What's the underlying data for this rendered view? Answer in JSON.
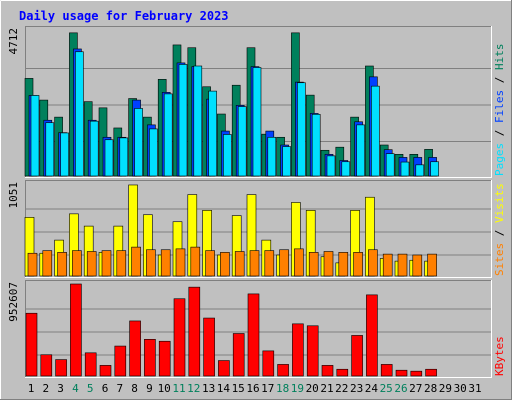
{
  "colors": {
    "background": "#c0c0c0",
    "plot_bg": "#c0c0c0",
    "title": "#0000ff",
    "hits": "#00805c",
    "files": "#0040ff",
    "pages": "#00e0ff",
    "visits": "#ffff00",
    "sites": "#ff8000",
    "kbytes": "#ff0000",
    "weekend_label": "#00805c",
    "weekday_label": "#000000"
  },
  "chart_data": [
    {
      "type": "bar",
      "title": "Daily usage for February 2023",
      "ymax_label": "4712",
      "legend": [
        {
          "text": "Pages",
          "color": "#00e0ff"
        },
        {
          "text": " / ",
          "color": "#000000"
        },
        {
          "text": "Files",
          "color": "#0040ff"
        },
        {
          "text": " / ",
          "color": "#000000"
        },
        {
          "text": "Hits",
          "color": "#00805c"
        }
      ],
      "ylim": [
        0,
        4712
      ],
      "categories": [
        "1",
        "2",
        "3",
        "4",
        "5",
        "6",
        "7",
        "8",
        "9",
        "10",
        "11",
        "12",
        "13",
        "14",
        "15",
        "16",
        "17",
        "18",
        "19",
        "20",
        "21",
        "22",
        "23",
        "24",
        "25",
        "26",
        "27",
        "28",
        "29",
        "30",
        "31"
      ],
      "weekend_days": [
        "4",
        "5",
        "11",
        "12",
        "18",
        "19",
        "25",
        "26"
      ],
      "series": [
        {
          "name": "Hits",
          "values": [
            3150,
            2450,
            1900,
            4620,
            2400,
            2200,
            1550,
            2500,
            1900,
            3120,
            4230,
            4140,
            2880,
            2000,
            2930,
            4140,
            1350,
            1250,
            4620,
            2610,
            830,
            930,
            1900,
            3550,
            1000,
            700,
            700,
            860,
            0,
            0,
            0
          ]
        },
        {
          "name": "Files",
          "values": [
            2600,
            1800,
            1400,
            4100,
            1800,
            1250,
            1250,
            2450,
            1650,
            2700,
            3650,
            3530,
            2480,
            1450,
            2280,
            3530,
            1450,
            1000,
            3030,
            2020,
            700,
            500,
            1750,
            3200,
            850,
            600,
            600,
            600,
            0,
            0,
            0
          ]
        },
        {
          "name": "Pages",
          "values": [
            2600,
            1720,
            1390,
            4010,
            1770,
            1170,
            1230,
            2180,
            1520,
            2650,
            3600,
            3550,
            2740,
            1340,
            2240,
            3500,
            1250,
            950,
            3010,
            1990,
            650,
            460,
            1650,
            2900,
            720,
            450,
            360,
            460,
            0,
            0,
            0
          ]
        }
      ]
    },
    {
      "type": "bar",
      "ymax_label": "1051",
      "legend": [
        {
          "text": "Sites",
          "color": "#ff8000"
        },
        {
          "text": " / ",
          "color": "#000000"
        },
        {
          "text": "Visits",
          "color": "#ffff00"
        }
      ],
      "ylim": [
        0,
        1051
      ],
      "categories": [
        "1",
        "2",
        "3",
        "4",
        "5",
        "6",
        "7",
        "8",
        "9",
        "10",
        "11",
        "12",
        "13",
        "14",
        "15",
        "16",
        "17",
        "18",
        "19",
        "20",
        "21",
        "22",
        "23",
        "24",
        "25",
        "26",
        "27",
        "28",
        "29",
        "30",
        "31"
      ],
      "series": [
        {
          "name": "Visits",
          "values": [
            670,
            260,
            410,
            710,
            570,
            270,
            570,
            1040,
            700,
            240,
            620,
            930,
            750,
            240,
            690,
            930,
            410,
            240,
            840,
            750,
            220,
            150,
            750,
            900,
            200,
            170,
            180,
            170,
            0,
            0,
            0
          ]
        },
        {
          "name": "Sites",
          "values": [
            260,
            290,
            270,
            290,
            280,
            290,
            290,
            330,
            300,
            300,
            310,
            330,
            290,
            270,
            280,
            290,
            290,
            300,
            310,
            270,
            280,
            270,
            270,
            300,
            250,
            250,
            240,
            250,
            0,
            0,
            0
          ]
        }
      ]
    },
    {
      "type": "bar",
      "ymax_label": "952607",
      "legend": [
        {
          "text": "KBytes",
          "color": "#ff0000"
        }
      ],
      "ylim": [
        0,
        952607
      ],
      "categories": [
        "1",
        "2",
        "3",
        "4",
        "5",
        "6",
        "7",
        "8",
        "9",
        "10",
        "11",
        "12",
        "13",
        "14",
        "15",
        "16",
        "17",
        "18",
        "19",
        "20",
        "21",
        "22",
        "23",
        "24",
        "25",
        "26",
        "27",
        "28",
        "29",
        "30",
        "31"
      ],
      "series": [
        {
          "name": "KBytes",
          "values": [
            650000,
            220000,
            170000,
            952607,
            240000,
            110000,
            310000,
            570000,
            380000,
            360000,
            800000,
            920000,
            600000,
            160000,
            440000,
            850000,
            260000,
            120000,
            540000,
            520000,
            110000,
            70000,
            420000,
            840000,
            120000,
            60000,
            50000,
            70000,
            0,
            0,
            0
          ]
        }
      ]
    }
  ]
}
